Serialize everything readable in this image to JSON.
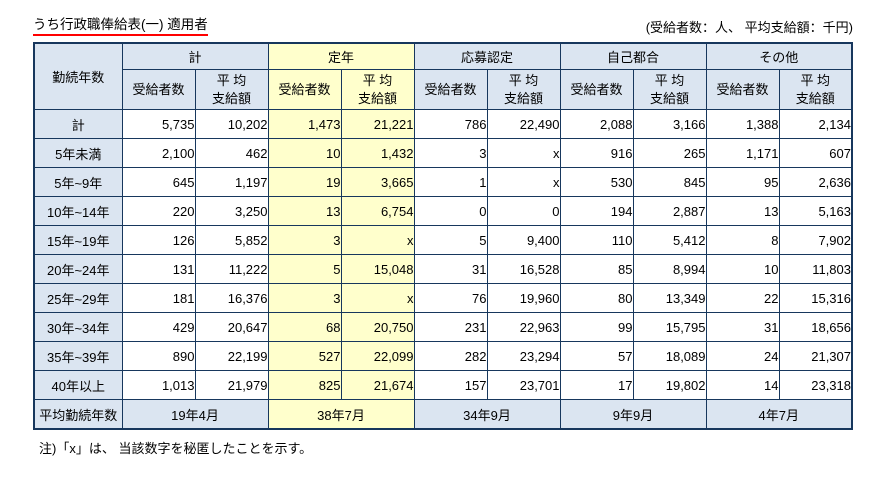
{
  "page": {
    "title": "うち行政職俸給表(一) 適用者",
    "units_note": "(受給者数：人、 平均支給額：千円)",
    "footnote": "注)「x」は、 当該数字を秘匿したことを示す。"
  },
  "colors": {
    "header_bg": "#dbe5f1",
    "highlight_bg": "#ffffcc",
    "border": "#17375d",
    "title_underline": "#ff0000"
  },
  "table": {
    "corner_header": "勤続年数",
    "groups": [
      {
        "label": "計",
        "highlight": false
      },
      {
        "label": "定年",
        "highlight": true
      },
      {
        "label": "応募認定",
        "highlight": false
      },
      {
        "label": "自己都合",
        "highlight": false
      },
      {
        "label": "その他",
        "highlight": false
      }
    ],
    "sub_headers": [
      "受給者数",
      "平 均\n支給額"
    ],
    "rows": [
      {
        "label": "計",
        "values": [
          "5,735",
          "10,202",
          "1,473",
          "21,221",
          "786",
          "22,490",
          "2,088",
          "3,166",
          "1,388",
          "2,134"
        ]
      },
      {
        "label": "5年未満",
        "values": [
          "2,100",
          "462",
          "10",
          "1,432",
          "3",
          "x",
          "916",
          "265",
          "1,171",
          "607"
        ]
      },
      {
        "label": "5年~9年",
        "values": [
          "645",
          "1,197",
          "19",
          "3,665",
          "1",
          "x",
          "530",
          "845",
          "95",
          "2,636"
        ]
      },
      {
        "label": "10年~14年",
        "values": [
          "220",
          "3,250",
          "13",
          "6,754",
          "0",
          "0",
          "194",
          "2,887",
          "13",
          "5,163"
        ]
      },
      {
        "label": "15年~19年",
        "values": [
          "126",
          "5,852",
          "3",
          "x",
          "5",
          "9,400",
          "110",
          "5,412",
          "8",
          "7,902"
        ]
      },
      {
        "label": "20年~24年",
        "values": [
          "131",
          "11,222",
          "5",
          "15,048",
          "31",
          "16,528",
          "85",
          "8,994",
          "10",
          "11,803"
        ]
      },
      {
        "label": "25年~29年",
        "values": [
          "181",
          "16,376",
          "3",
          "x",
          "76",
          "19,960",
          "80",
          "13,349",
          "22",
          "15,316"
        ]
      },
      {
        "label": "30年~34年",
        "values": [
          "429",
          "20,647",
          "68",
          "20,750",
          "231",
          "22,963",
          "99",
          "15,795",
          "31",
          "18,656"
        ]
      },
      {
        "label": "35年~39年",
        "values": [
          "890",
          "22,199",
          "527",
          "22,099",
          "282",
          "23,294",
          "57",
          "18,089",
          "24",
          "21,307"
        ]
      },
      {
        "label": "40年以上",
        "values": [
          "1,013",
          "21,979",
          "825",
          "21,674",
          "157",
          "23,701",
          "17",
          "19,802",
          "14",
          "23,318"
        ]
      }
    ],
    "footer_row": {
      "label": "平均勤続年数",
      "values": [
        "19年4月",
        "38年7月",
        "34年9月",
        "9年9月",
        "4年7月"
      ]
    }
  }
}
